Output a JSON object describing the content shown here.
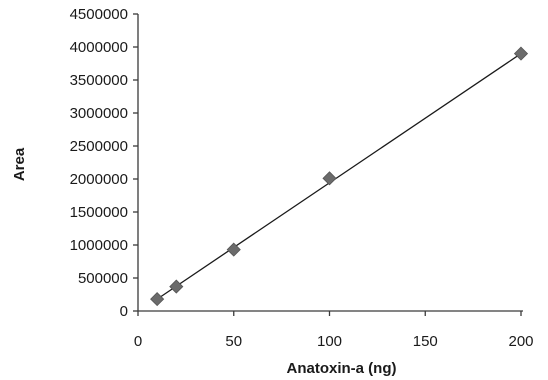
{
  "chart_data": {
    "type": "scatter",
    "title": "",
    "xlabel": "Anatoxin-a (ng)",
    "ylabel": "Area",
    "xlim": [
      0,
      200
    ],
    "ylim": [
      0,
      4500000
    ],
    "x_ticks": [
      0,
      50,
      100,
      150,
      200
    ],
    "x_tick_labels": [
      "0",
      "50",
      "100",
      "150",
      "200"
    ],
    "y_ticks": [
      0,
      500000,
      1000000,
      1500000,
      2000000,
      2500000,
      3000000,
      3500000,
      4000000,
      4500000
    ],
    "y_tick_labels": [
      "0",
      "500000",
      "1000000",
      "1500000",
      "2000000",
      "2500000",
      "3000000",
      "3500000",
      "4000000",
      "4500000"
    ],
    "grid": false,
    "legend": "none",
    "series": [
      {
        "x": [
          10,
          20,
          50,
          100,
          200
        ],
        "y": [
          180000,
          370000,
          930000,
          2010000,
          3900000
        ],
        "marker": "diamond",
        "color": "#6b6b6b"
      }
    ],
    "trendline": {
      "type": "linear",
      "x": [
        10,
        200
      ],
      "y": [
        180000,
        3900000
      ],
      "color": "#1a1a1a"
    }
  }
}
